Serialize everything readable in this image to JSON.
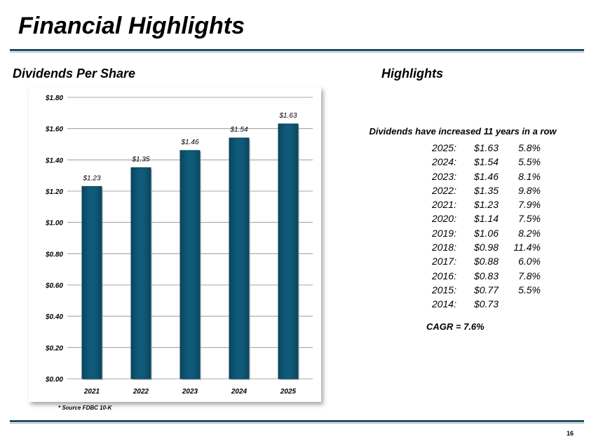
{
  "header": {
    "title": "Financial Highlights"
  },
  "left_section": {
    "heading": "Dividends Per Share"
  },
  "right_section": {
    "heading": "Highlights"
  },
  "highlights": {
    "headline": "Dividends have increased 11 years in a row",
    "rows": [
      {
        "year": "2025:",
        "value": "$1.63",
        "pct": "5.8%"
      },
      {
        "year": "2024:",
        "value": "$1.54",
        "pct": "5.5%"
      },
      {
        "year": "2023:",
        "value": "$1.46",
        "pct": "8.1%"
      },
      {
        "year": "2022:",
        "value": "$1.35",
        "pct": "9.8%"
      },
      {
        "year": "2021:",
        "value": "$1.23",
        "pct": "7.9%"
      },
      {
        "year": "2020:",
        "value": "$1.14",
        "pct": "7.5%"
      },
      {
        "year": "2019:",
        "value": "$1.06",
        "pct": "8.2%"
      },
      {
        "year": "2018:",
        "value": "$0.98",
        "pct": "11.4%"
      },
      {
        "year": "2017:",
        "value": "$0.88",
        "pct": "6.0%"
      },
      {
        "year": "2016:",
        "value": "$0.83",
        "pct": "7.8%"
      },
      {
        "year": "2015:",
        "value": "$0.77",
        "pct": "5.5%"
      },
      {
        "year": "2014:",
        "value": "$0.73",
        "pct": ""
      }
    ],
    "cagr": "CAGR = 7.6%"
  },
  "footnote": "* Source FDBC 10-K",
  "page_number": "16",
  "colors": {
    "bar": "#0f5a78",
    "bar_edge": "#0a3e55",
    "rule": "#1f4e64",
    "grid": "#8c8c8c"
  },
  "chart_data": {
    "type": "bar",
    "categories": [
      "2021",
      "2022",
      "2023",
      "2024",
      "2025"
    ],
    "values": [
      1.23,
      1.35,
      1.46,
      1.54,
      1.63
    ],
    "data_labels": [
      "$1.23",
      "$1.35",
      "$1.46",
      "$1.54",
      "$1.63"
    ],
    "yticks": [
      "$0.00",
      "$0.20",
      "$0.40",
      "$0.60",
      "$0.80",
      "$1.00",
      "$1.20",
      "$1.40",
      "$1.60",
      "$1.80"
    ],
    "ylim": [
      0,
      1.8
    ],
    "title": "",
    "xlabel": "",
    "ylabel": "",
    "grid": true
  }
}
